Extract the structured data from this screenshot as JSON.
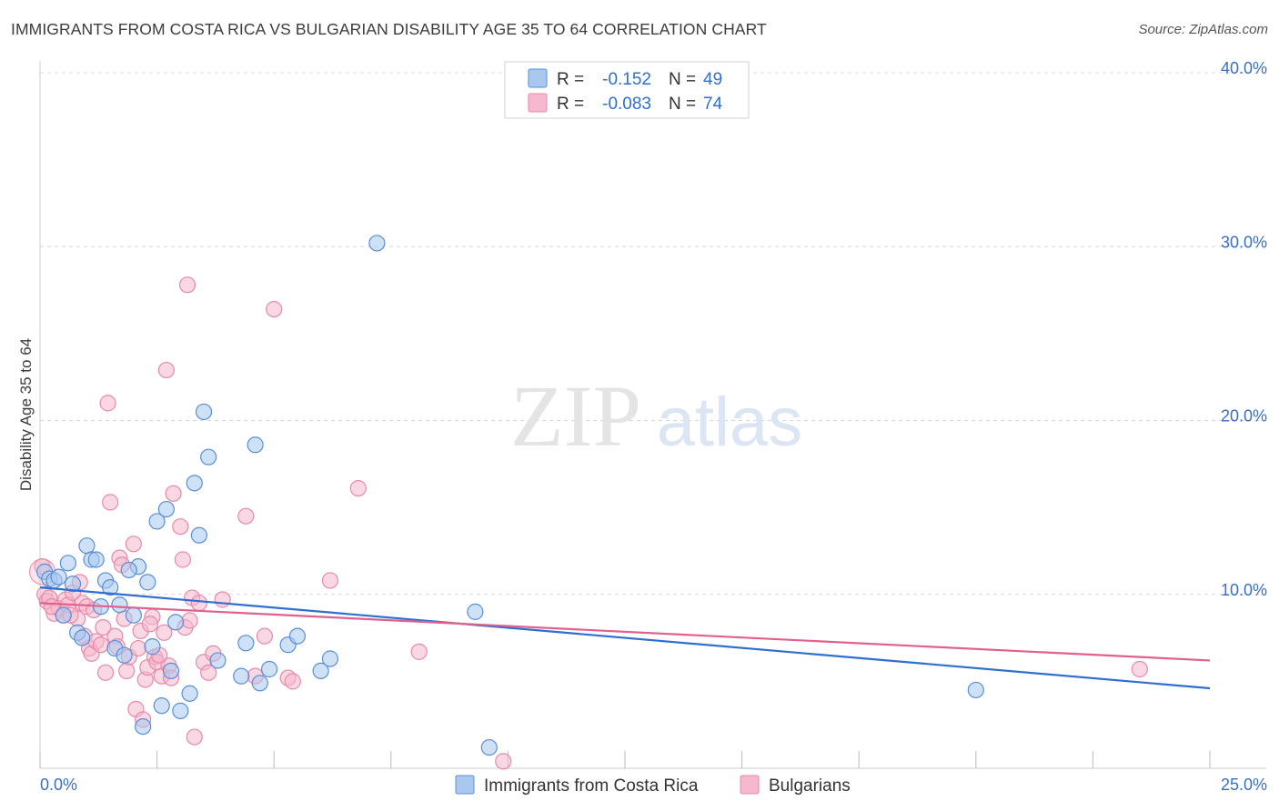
{
  "title": "IMMIGRANTS FROM COSTA RICA VS BULGARIAN DISABILITY AGE 35 TO 64 CORRELATION CHART",
  "source": "Source: ZipAtlas.com",
  "colors": {
    "blue_fill": "#a8c8f0",
    "blue_stroke": "#5a8fd8",
    "blue_line": "#2f6fcf",
    "pink_fill": "#f6b8cc",
    "pink_stroke": "#e78aa8",
    "pink_line": "#e0608e",
    "grid": "#d8d8d8",
    "tick_text": "#3a6fc4"
  },
  "watermark": {
    "part1": "ZIP",
    "part2": "atlas"
  },
  "legend": {
    "rows": [
      {
        "r_label": "R =",
        "r_value": "-0.152",
        "n_label": "N =",
        "n_value": "49"
      },
      {
        "r_label": "R =",
        "r_value": "-0.083",
        "n_label": "N =",
        "n_value": "74"
      }
    ]
  },
  "chart_data": {
    "type": "scatter",
    "title": "IMMIGRANTS FROM COSTA RICA VS BULGARIAN DISABILITY AGE 35 TO 64 CORRELATION CHART",
    "xlabel": "",
    "ylabel": "Disability Age 35 to 64",
    "xlim": [
      0,
      25
    ],
    "ylim": [
      0,
      40
    ],
    "x_tick_labels": [
      "0.0%",
      "25.0%"
    ],
    "y_ticks": [
      10,
      20,
      30,
      40
    ],
    "y_tick_labels": [
      "10.0%",
      "20.0%",
      "30.0%",
      "40.0%"
    ],
    "series": [
      {
        "name": "Immigrants from Costa Rica",
        "r": -0.152,
        "n": 49,
        "trend": {
          "x": [
            0,
            25
          ],
          "y": [
            10.4,
            4.6
          ]
        },
        "points": [
          [
            0.1,
            11.3
          ],
          [
            0.2,
            10.9
          ],
          [
            0.3,
            10.8
          ],
          [
            0.5,
            8.8
          ],
          [
            0.6,
            11.8
          ],
          [
            0.7,
            10.6
          ],
          [
            0.8,
            7.8
          ],
          [
            0.9,
            7.5
          ],
          [
            1.0,
            12.8
          ],
          [
            1.1,
            12.0
          ],
          [
            1.2,
            12.0
          ],
          [
            1.3,
            9.3
          ],
          [
            1.4,
            10.8
          ],
          [
            1.5,
            10.4
          ],
          [
            1.6,
            6.9
          ],
          [
            1.7,
            9.4
          ],
          [
            1.8,
            6.5
          ],
          [
            2.0,
            8.8
          ],
          [
            2.1,
            11.6
          ],
          [
            2.2,
            2.4
          ],
          [
            2.3,
            10.7
          ],
          [
            2.4,
            7.0
          ],
          [
            2.5,
            14.2
          ],
          [
            2.6,
            3.6
          ],
          [
            2.7,
            14.9
          ],
          [
            2.8,
            5.6
          ],
          [
            2.9,
            8.4
          ],
          [
            3.0,
            3.3
          ],
          [
            3.2,
            4.3
          ],
          [
            3.3,
            16.4
          ],
          [
            3.4,
            13.4
          ],
          [
            3.5,
            20.5
          ],
          [
            3.6,
            17.9
          ],
          [
            3.8,
            6.2
          ],
          [
            4.3,
            5.3
          ],
          [
            4.4,
            7.2
          ],
          [
            4.6,
            18.6
          ],
          [
            4.7,
            4.9
          ],
          [
            4.9,
            5.7
          ],
          [
            5.3,
            7.1
          ],
          [
            5.5,
            7.6
          ],
          [
            6.0,
            5.6
          ],
          [
            6.2,
            6.3
          ],
          [
            7.2,
            30.2
          ],
          [
            9.3,
            9.0
          ],
          [
            9.6,
            1.2
          ],
          [
            20.0,
            4.5
          ],
          [
            0.4,
            11.0
          ],
          [
            1.9,
            11.4
          ]
        ]
      },
      {
        "name": "Bulgarians",
        "r": -0.083,
        "n": 74,
        "trend": {
          "x": [
            0,
            25
          ],
          "y": [
            9.5,
            6.2
          ]
        },
        "points": [
          [
            0.05,
            11.6
          ],
          [
            0.1,
            10.0
          ],
          [
            0.15,
            9.6
          ],
          [
            0.2,
            9.8
          ],
          [
            0.3,
            8.9
          ],
          [
            0.4,
            9.2
          ],
          [
            0.5,
            8.8
          ],
          [
            0.55,
            9.7
          ],
          [
            0.6,
            9.4
          ],
          [
            0.7,
            10.1
          ],
          [
            0.8,
            8.6
          ],
          [
            0.85,
            10.7
          ],
          [
            0.9,
            9.5
          ],
          [
            0.95,
            7.6
          ],
          [
            1.0,
            9.3
          ],
          [
            1.05,
            6.9
          ],
          [
            1.1,
            6.6
          ],
          [
            1.2,
            7.3
          ],
          [
            1.3,
            7.1
          ],
          [
            1.35,
            8.1
          ],
          [
            1.4,
            5.5
          ],
          [
            1.45,
            21.0
          ],
          [
            1.5,
            15.3
          ],
          [
            1.6,
            7.6
          ],
          [
            1.65,
            7.0
          ],
          [
            1.7,
            12.1
          ],
          [
            1.75,
            11.7
          ],
          [
            1.8,
            8.6
          ],
          [
            1.85,
            5.6
          ],
          [
            1.9,
            6.4
          ],
          [
            2.0,
            12.9
          ],
          [
            2.05,
            3.4
          ],
          [
            2.1,
            6.9
          ],
          [
            2.15,
            7.9
          ],
          [
            2.2,
            2.8
          ],
          [
            2.25,
            5.1
          ],
          [
            2.3,
            5.8
          ],
          [
            2.4,
            8.7
          ],
          [
            2.45,
            6.4
          ],
          [
            2.5,
            6.1
          ],
          [
            2.6,
            5.3
          ],
          [
            2.65,
            7.8
          ],
          [
            2.7,
            22.9
          ],
          [
            2.75,
            5.9
          ],
          [
            2.8,
            5.2
          ],
          [
            2.85,
            15.8
          ],
          [
            3.0,
            13.9
          ],
          [
            3.05,
            12.0
          ],
          [
            3.1,
            8.1
          ],
          [
            3.15,
            27.8
          ],
          [
            3.2,
            8.5
          ],
          [
            3.25,
            9.8
          ],
          [
            3.3,
            1.8
          ],
          [
            3.4,
            9.5
          ],
          [
            3.5,
            6.1
          ],
          [
            3.7,
            6.6
          ],
          [
            3.9,
            9.7
          ],
          [
            4.4,
            14.5
          ],
          [
            4.6,
            5.3
          ],
          [
            4.8,
            7.6
          ],
          [
            5.0,
            26.4
          ],
          [
            5.3,
            5.2
          ],
          [
            5.4,
            5.0
          ],
          [
            6.2,
            10.8
          ],
          [
            6.8,
            16.1
          ],
          [
            8.1,
            6.7
          ],
          [
            9.9,
            0.4
          ],
          [
            23.5,
            5.7
          ],
          [
            0.25,
            9.3
          ],
          [
            0.65,
            8.8
          ],
          [
            1.15,
            9.1
          ],
          [
            2.35,
            8.3
          ],
          [
            2.55,
            6.5
          ],
          [
            3.6,
            5.5
          ]
        ]
      }
    ]
  }
}
